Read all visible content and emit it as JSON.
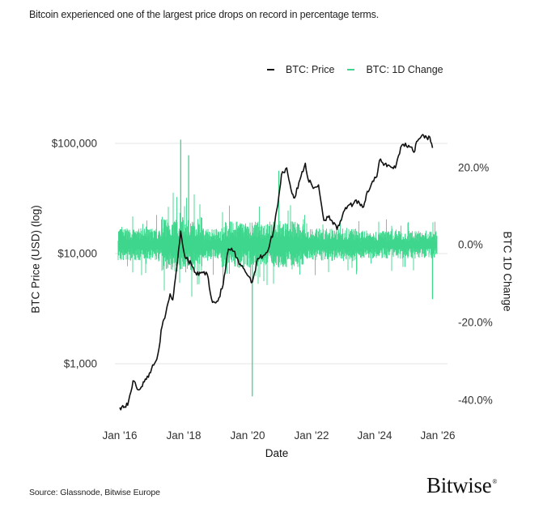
{
  "subtitle": "Bitcoin experienced one of the largest price drops on record in percentage terms.",
  "legend": {
    "items": [
      {
        "label": "BTC: Price",
        "color": "#111111"
      },
      {
        "label": "BTC: 1D Change",
        "color": "#3dd68c"
      }
    ]
  },
  "axes": {
    "left_label": "BTC Price (USD) (log)",
    "right_label": "BTC 1D Change",
    "x_label": "Date",
    "left_ticks": [
      "$100,000",
      "$10,000",
      "$1,000"
    ],
    "right_ticks": [
      "20.0%",
      "0.0%",
      "-20.0%",
      "-40.0%"
    ],
    "x_ticks": [
      "Jan '16",
      "Jan '18",
      "Jan '20",
      "Jan '22",
      "Jan '24",
      "Jan '26"
    ]
  },
  "footer": {
    "source": "Source: Glassnode, Bitwise Europe",
    "logo": "Bitwise",
    "logo_mark": "®"
  },
  "colors": {
    "price": "#111111",
    "change": "#3dd68c",
    "grid": "#e6e6e6",
    "background": "#ffffff"
  },
  "chart_data": {
    "type": "line",
    "title": "Bitcoin experienced one of the largest price drops on record in percentage terms.",
    "xlabel": "Date",
    "ylabel": "BTC Price (USD) (log)",
    "ylabel_right": "BTC 1D Change",
    "x_range": [
      "2016-01",
      "2025-11"
    ],
    "ylim_left_log": [
      300,
      150000
    ],
    "ylim_right": [
      -0.45,
      0.3
    ],
    "grid": true,
    "legend_position": "top-right",
    "series": [
      {
        "name": "BTC: Price",
        "axis": "left",
        "scale": "log",
        "x": [
          "2016-01",
          "2016-04",
          "2016-06",
          "2016-08",
          "2016-11",
          "2017-01",
          "2017-03",
          "2017-05",
          "2017-06",
          "2017-08",
          "2017-09",
          "2017-10",
          "2017-12",
          "2018-01",
          "2018-02",
          "2018-04",
          "2018-06",
          "2018-08",
          "2018-10",
          "2018-12",
          "2019-02",
          "2019-04",
          "2019-06",
          "2019-08",
          "2019-10",
          "2019-12",
          "2020-03",
          "2020-05",
          "2020-07",
          "2020-09",
          "2020-11",
          "2021-01",
          "2021-02",
          "2021-04",
          "2021-06",
          "2021-07",
          "2021-09",
          "2021-11",
          "2021-12",
          "2022-02",
          "2022-04",
          "2022-06",
          "2022-08",
          "2022-11",
          "2023-01",
          "2023-03",
          "2023-05",
          "2023-07",
          "2023-09",
          "2023-10",
          "2023-12",
          "2024-02",
          "2024-03",
          "2024-05",
          "2024-07",
          "2024-09",
          "2024-11",
          "2024-12",
          "2025-02",
          "2025-04",
          "2025-05",
          "2025-07",
          "2025-08",
          "2025-10",
          "2025-11"
        ],
        "values": [
          400,
          420,
          700,
          580,
          720,
          900,
          1100,
          2200,
          2600,
          4300,
          3800,
          6000,
          16000,
          11000,
          9000,
          8000,
          6400,
          6800,
          6500,
          3600,
          3700,
          5200,
          11000,
          10500,
          8000,
          7200,
          5500,
          9000,
          9500,
          10800,
          16000,
          33000,
          52000,
          60000,
          35000,
          32000,
          47000,
          66000,
          48000,
          39000,
          42000,
          20000,
          22000,
          16500,
          22000,
          27000,
          28000,
          30000,
          26500,
          34000,
          43000,
          50000,
          70000,
          65000,
          62000,
          60000,
          92000,
          98000,
          96000,
          83000,
          104000,
          118000,
          112000,
          114000,
          91000
        ]
      },
      {
        "name": "BTC: 1D Change",
        "axis": "right",
        "type": "bar",
        "note": "daily % change; notable extremes listed",
        "extremes": [
          {
            "date": "2017-12",
            "value": 0.27
          },
          {
            "date": "2018-03",
            "value": 0.23
          },
          {
            "date": "2020-03",
            "value": -0.39
          },
          {
            "date": "2021-01",
            "value": 0.19
          },
          {
            "date": "2025-11",
            "value": -0.14
          }
        ],
        "typical_range": [
          -0.1,
          0.1
        ]
      }
    ]
  }
}
